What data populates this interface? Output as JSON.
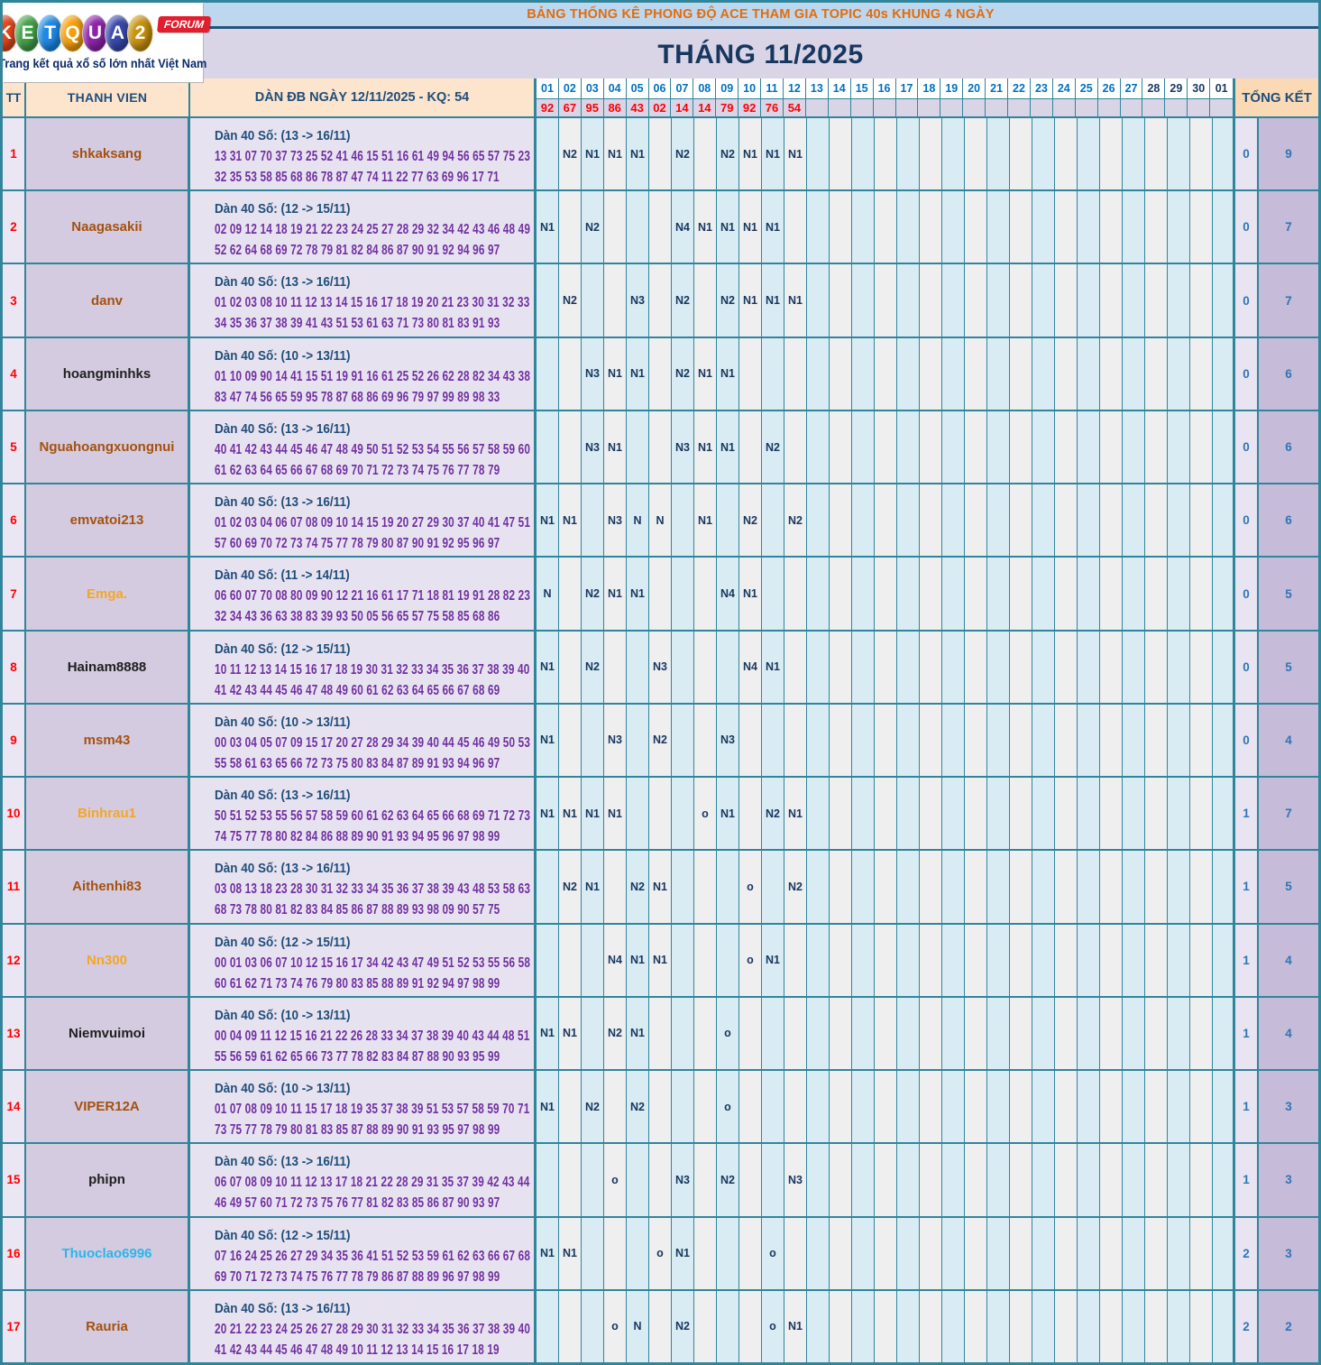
{
  "logo": {
    "brand_letters": [
      "K",
      "E",
      "T",
      "Q",
      "U",
      "A",
      "2"
    ],
    "brand_colors": [
      "#e2481d",
      "#43a047",
      "#1e88e5",
      "#f59f0a",
      "#8e24aa",
      "#3949ab",
      "#c9920e"
    ],
    "forum_label": "FORUM",
    "tagline": "Trang kết quả xổ số lớn nhất Việt Nam"
  },
  "header": {
    "banner": "BẢNG THỐNG KÊ PHONG ĐỘ ACE THAM GIA TOPIC 40s KHUNG 4 NGÀY",
    "month_title": "THÁNG 11/2025",
    "col_tt": "TT",
    "col_member": "THANH VIEN",
    "col_dan": "DÀN ĐB NGÀY 12/11/2025 - KQ: 54",
    "col_total": "TỔNG KẾT",
    "days": [
      "01",
      "02",
      "03",
      "04",
      "05",
      "06",
      "07",
      "08",
      "09",
      "10",
      "11",
      "12",
      "13",
      "14",
      "15",
      "16",
      "17",
      "18",
      "19",
      "20",
      "21",
      "22",
      "23",
      "24",
      "25",
      "26",
      "27",
      "28",
      "29",
      "30",
      "01"
    ],
    "bold_days_from_index": 27,
    "results": [
      "92",
      "67",
      "95",
      "86",
      "43",
      "02",
      "14",
      "14",
      "79",
      "92",
      "76",
      "54"
    ]
  },
  "colors": {
    "grid_teal": "#31859b",
    "banner_bg": "#bdd7ee",
    "banner_text": "#e36c0a",
    "title_text": "#17375e",
    "result_red": "#fe0000",
    "day_blue": "#0070c0",
    "mark_navy": "#17375e",
    "dan_purple": "#7030a0",
    "total_blue": "#2e75b6",
    "peach_header": "#fce4cd",
    "member_brown": "#a4510f",
    "member_orange": "#f5a623",
    "member_black": "#202020",
    "member_cyan": "#29b6ea"
  },
  "rows": [
    {
      "tt": "1",
      "member": "shkaksang",
      "member_color": "#a4510f",
      "range": "Dàn 40 Số: (13 -> 16/11)",
      "line1": "13 31 07 70 37 73 25 52 41 46 15 51 16 61 49 94 56 65 57 75 23",
      "line2": "32 35 53 58 85 68 86 78 87 47 74 11 22 77 63 69 96 17 71",
      "marks": {
        "2": "N2",
        "3": "N1",
        "4": "N1",
        "5": "N1",
        "7": "N2",
        "9": "N2",
        "10": "N1",
        "11": "N1",
        "12": "N1"
      },
      "total_o": "0",
      "total_n": "9"
    },
    {
      "tt": "2",
      "member": "Naagasakii",
      "member_color": "#a4510f",
      "range": "Dàn 40 Số: (12 -> 15/11)",
      "line1": "02 09 12 14 18 19 21 22 23 24 25 27 28 29 32 34 42 43 46 48 49",
      "line2": "52 62 64 68 69 72 78 79 81 82 84 86 87 90 91 92 94 96 97",
      "marks": {
        "1": "N1",
        "3": "N2",
        "7": "N4",
        "8": "N1",
        "9": "N1",
        "10": "N1",
        "11": "N1"
      },
      "total_o": "0",
      "total_n": "7"
    },
    {
      "tt": "3",
      "member": "danv",
      "member_color": "#a4510f",
      "range": "Dàn 40 Số: (13 -> 16/11)",
      "line1": "01 02 03 08 10 11 12 13 14 15 16 17 18 19 20 21 23 30 31 32 33",
      "line2": "34 35 36 37 38 39 41 43 51 53 61 63 71 73 80 81 83 91 93",
      "marks": {
        "2": "N2",
        "5": "N3",
        "7": "N2",
        "9": "N2",
        "10": "N1",
        "11": "N1",
        "12": "N1"
      },
      "total_o": "0",
      "total_n": "7"
    },
    {
      "tt": "4",
      "member": "hoangminhks",
      "member_color": "#202020",
      "range": "Dàn 40 Số: (10 -> 13/11)",
      "line1": "01 10 09 90 14 41 15 51 19 91 16 61 25 52 26 62 28 82 34 43 38",
      "line2": "83 47 74 56 65 59 95 78 87 68 86 69 96 79 97 99 89 98 33",
      "marks": {
        "3": "N3",
        "4": "N1",
        "5": "N1",
        "7": "N2",
        "8": "N1",
        "9": "N1"
      },
      "total_o": "0",
      "total_n": "6"
    },
    {
      "tt": "5",
      "member": "Nguahoangxuongnui",
      "member_color": "#a4510f",
      "range": "Dàn 40 Số: (13 -> 16/11)",
      "line1": "40 41 42 43 44 45 46 47 48 49 50 51 52 53 54 55 56 57 58 59 60",
      "line2": "61 62 63 64 65 66 67 68 69 70 71 72 73 74 75 76 77 78 79",
      "marks": {
        "3": "N3",
        "4": "N1",
        "7": "N3",
        "8": "N1",
        "9": "N1",
        "11": "N2"
      },
      "total_o": "0",
      "total_n": "6"
    },
    {
      "tt": "6",
      "member": "emvatoi213",
      "member_color": "#a4510f",
      "range": "Dàn 40 Số: (13 -> 16/11)",
      "line1": "01 02 03 04 06 07 08 09 10 14 15 19 20 27 29 30 37 40 41 47 51",
      "line2": "57 60 69 70 72 73 74 75 77 78 79 80 87 90 91 92 95 96 97",
      "marks": {
        "1": "N1",
        "2": "N1",
        "4": "N3",
        "5": "N",
        "6": "N",
        "8": "N1",
        "10": "N2",
        "12": "N2"
      },
      "total_o": "0",
      "total_n": "6"
    },
    {
      "tt": "7",
      "member": "Emga.",
      "member_color": "#f5a623",
      "range": "Dàn 40 Số: (11 -> 14/11)",
      "line1": "06 60 07 70 08 80 09 90 12 21 16 61 17 71 18 81 19 91 28 82 23",
      "line2": "32 34 43 36 63 38 83 39 93 50 05 56 65 57 75 58 85 68 86",
      "marks": {
        "1": "N",
        "3": "N2",
        "4": "N1",
        "5": "N1",
        "9": "N4",
        "10": "N1"
      },
      "total_o": "0",
      "total_n": "5"
    },
    {
      "tt": "8",
      "member": "Hainam8888",
      "member_color": "#202020",
      "range": "Dàn 40 Số: (12 -> 15/11)",
      "line1": "10 11 12 13 14 15 16 17 18 19 30 31 32 33 34 35 36 37 38 39 40",
      "line2": "41 42 43 44 45 46 47 48 49 60 61 62 63 64 65 66 67 68 69",
      "marks": {
        "1": "N1",
        "3": "N2",
        "6": "N3",
        "10": "N4",
        "11": "N1"
      },
      "total_o": "0",
      "total_n": "5"
    },
    {
      "tt": "9",
      "member": "msm43",
      "member_color": "#a4510f",
      "range": "Dàn 40 Số: (10 -> 13/11)",
      "line1": "00 03 04 05 07 09 15 17 20 27 28 29 34 39 40 44 45 46 49 50 53",
      "line2": "55 58 61 63 65 66 72 73 75 80 83 84 87 89 91 93 94 96 97",
      "marks": {
        "1": "N1",
        "4": "N3",
        "6": "N2",
        "9": "N3"
      },
      "total_o": "0",
      "total_n": "4"
    },
    {
      "tt": "10",
      "member": "Binhrau1",
      "member_color": "#f5a623",
      "range": "Dàn 40 Số: (13 -> 16/11)",
      "line1": "50 51 52 53 55 56 57 58 59 60 61 62 63 64 65 66 68 69 71 72 73",
      "line2": "74 75 77 78 80 82 84 86 88 89 90 91 93 94 95 96 97 98 99",
      "marks": {
        "1": "N1",
        "2": "N1",
        "3": "N1",
        "4": "N1",
        "8": "o",
        "9": "N1",
        "11": "N2",
        "12": "N1"
      },
      "total_o": "1",
      "total_n": "7"
    },
    {
      "tt": "11",
      "member": "Aithenhi83",
      "member_color": "#a4510f",
      "range": "Dàn 40 Số: (13 -> 16/11)",
      "line1": "03 08 13 18 23 28 30 31 32 33 34 35 36 37 38 39 43 48 53 58 63",
      "line2": "68 73 78 80 81 82 83 84 85 86 87 88 89 93 98 09 90 57 75",
      "marks": {
        "2": "N2",
        "3": "N1",
        "5": "N2",
        "6": "N1",
        "10": "o",
        "12": "N2"
      },
      "total_o": "1",
      "total_n": "5"
    },
    {
      "tt": "12",
      "member": "Nn300",
      "member_color": "#f5a623",
      "range": "Dàn 40 Số: (12 -> 15/11)",
      "line1": "00 01 03 06 07 10 12 15 16 17 34 42 43 47 49 51 52 53 55 56 58",
      "line2": "60 61 62 71 73 74 76 79 80 83 85 88 89 91 92 94 97 98 99",
      "marks": {
        "4": "N4",
        "5": "N1",
        "6": "N1",
        "10": "o",
        "11": "N1"
      },
      "total_o": "1",
      "total_n": "4"
    },
    {
      "tt": "13",
      "member": "Niemvuimoi",
      "member_color": "#202020",
      "range": "Dàn 40 Số: (10 -> 13/11)",
      "line1": "00 04 09 11 12 15 16 21 22 26 28 33 34 37 38 39 40 43 44 48 51",
      "line2": "55 56 59 61 62 65 66 73 77 78 82 83 84 87 88 90 93 95 99",
      "marks": {
        "1": "N1",
        "2": "N1",
        "4": "N2",
        "5": "N1",
        "9": "o"
      },
      "total_o": "1",
      "total_n": "4"
    },
    {
      "tt": "14",
      "member": "VIPER12A",
      "member_color": "#a4510f",
      "range": "Dàn 40 Số: (10 -> 13/11)",
      "line1": "01 07 08 09 10 11 15 17 18 19 35 37 38 39 51 53 57 58 59 70 71",
      "line2": "73 75 77 78 79 80 81 83 85 87 88 89 90 91 93 95 97 98 99",
      "marks": {
        "1": "N1",
        "3": "N2",
        "5": "N2",
        "9": "o"
      },
      "total_o": "1",
      "total_n": "3"
    },
    {
      "tt": "15",
      "member": "phipn",
      "member_color": "#202020",
      "range": "Dàn 40 Số: (13 -> 16/11)",
      "line1": "06 07 08 09 10 11 12 13 17 18 21 22 28 29 31 35 37 39 42 43 44",
      "line2": "46 49 57 60 71 72 73 75 76 77 81 82 83 85 86 87 90 93 97",
      "marks": {
        "4": "o",
        "7": "N3",
        "9": "N2",
        "12": "N3"
      },
      "total_o": "1",
      "total_n": "3"
    },
    {
      "tt": "16",
      "member": "Thuoclao6996",
      "member_color": "#29b6ea",
      "range": "Dàn 40 Số: (12 -> 15/11)",
      "line1": "07 16 24 25 26 27 29 34 35 36 41 51 52 53 59 61 62 63 66 67 68",
      "line2": "69 70 71 72 73 74 75 76 77 78 79 86 87 88 89 96 97 98 99",
      "marks": {
        "1": "N1",
        "2": "N1",
        "6": "o",
        "7": "N1",
        "11": "o"
      },
      "total_o": "2",
      "total_n": "3"
    },
    {
      "tt": "17",
      "member": "Rauria",
      "member_color": "#a4510f",
      "range": "Dàn 40 Số: (13 -> 16/11)",
      "line1": "20 21 22 23 24 25 26 27 28 29 30 31 32 33 34 35 36 37 38 39 40",
      "line2": "41 42 43 44 45 46 47 48 49 10 11 12 13 14 15 16 17 18 19",
      "marks": {
        "4": "o",
        "5": "N",
        "7": "N2",
        "11": "o",
        "12": "N1"
      },
      "total_o": "2",
      "total_n": "2"
    }
  ]
}
